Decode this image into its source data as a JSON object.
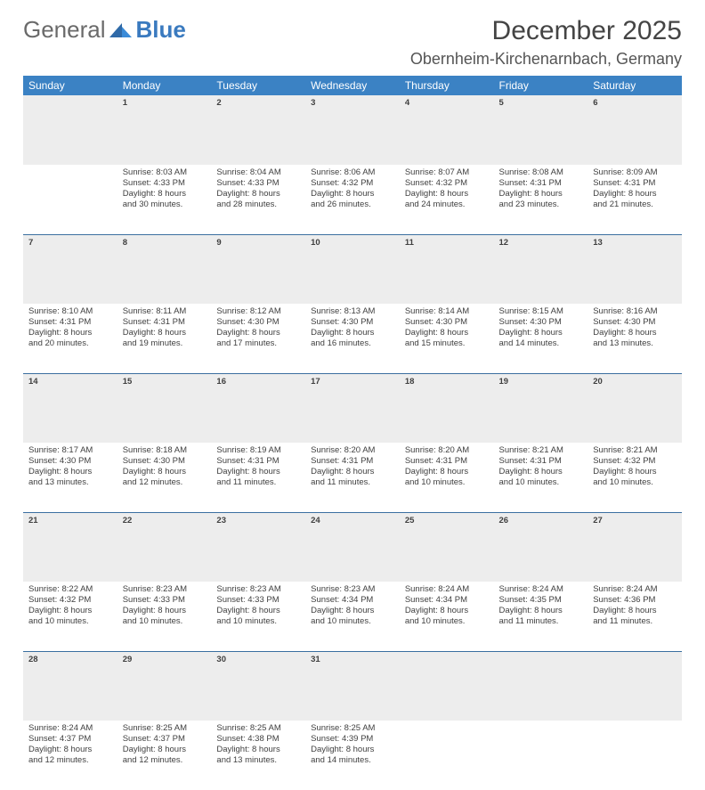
{
  "brand": {
    "word1": "General",
    "word2": "Blue"
  },
  "title": "December 2025",
  "location": "Obernheim-Kirchenarnbach, Germany",
  "colors": {
    "header_bg": "#3b82c4",
    "header_text": "#ffffff",
    "daynum_bg": "#ededed",
    "daynum_text": "#6b6b6b",
    "rule": "#3b6fa0",
    "body_text": "#3f3f3f",
    "brand_gray": "#6a6a6a",
    "brand_blue": "#3a7abf"
  },
  "weekdays": [
    "Sunday",
    "Monday",
    "Tuesday",
    "Wednesday",
    "Thursday",
    "Friday",
    "Saturday"
  ],
  "weeks": [
    [
      null,
      {
        "n": "1",
        "sr": "Sunrise: 8:03 AM",
        "ss": "Sunset: 4:33 PM",
        "d1": "Daylight: 8 hours",
        "d2": "and 30 minutes."
      },
      {
        "n": "2",
        "sr": "Sunrise: 8:04 AM",
        "ss": "Sunset: 4:33 PM",
        "d1": "Daylight: 8 hours",
        "d2": "and 28 minutes."
      },
      {
        "n": "3",
        "sr": "Sunrise: 8:06 AM",
        "ss": "Sunset: 4:32 PM",
        "d1": "Daylight: 8 hours",
        "d2": "and 26 minutes."
      },
      {
        "n": "4",
        "sr": "Sunrise: 8:07 AM",
        "ss": "Sunset: 4:32 PM",
        "d1": "Daylight: 8 hours",
        "d2": "and 24 minutes."
      },
      {
        "n": "5",
        "sr": "Sunrise: 8:08 AM",
        "ss": "Sunset: 4:31 PM",
        "d1": "Daylight: 8 hours",
        "d2": "and 23 minutes."
      },
      {
        "n": "6",
        "sr": "Sunrise: 8:09 AM",
        "ss": "Sunset: 4:31 PM",
        "d1": "Daylight: 8 hours",
        "d2": "and 21 minutes."
      }
    ],
    [
      {
        "n": "7",
        "sr": "Sunrise: 8:10 AM",
        "ss": "Sunset: 4:31 PM",
        "d1": "Daylight: 8 hours",
        "d2": "and 20 minutes."
      },
      {
        "n": "8",
        "sr": "Sunrise: 8:11 AM",
        "ss": "Sunset: 4:31 PM",
        "d1": "Daylight: 8 hours",
        "d2": "and 19 minutes."
      },
      {
        "n": "9",
        "sr": "Sunrise: 8:12 AM",
        "ss": "Sunset: 4:30 PM",
        "d1": "Daylight: 8 hours",
        "d2": "and 17 minutes."
      },
      {
        "n": "10",
        "sr": "Sunrise: 8:13 AM",
        "ss": "Sunset: 4:30 PM",
        "d1": "Daylight: 8 hours",
        "d2": "and 16 minutes."
      },
      {
        "n": "11",
        "sr": "Sunrise: 8:14 AM",
        "ss": "Sunset: 4:30 PM",
        "d1": "Daylight: 8 hours",
        "d2": "and 15 minutes."
      },
      {
        "n": "12",
        "sr": "Sunrise: 8:15 AM",
        "ss": "Sunset: 4:30 PM",
        "d1": "Daylight: 8 hours",
        "d2": "and 14 minutes."
      },
      {
        "n": "13",
        "sr": "Sunrise: 8:16 AM",
        "ss": "Sunset: 4:30 PM",
        "d1": "Daylight: 8 hours",
        "d2": "and 13 minutes."
      }
    ],
    [
      {
        "n": "14",
        "sr": "Sunrise: 8:17 AM",
        "ss": "Sunset: 4:30 PM",
        "d1": "Daylight: 8 hours",
        "d2": "and 13 minutes."
      },
      {
        "n": "15",
        "sr": "Sunrise: 8:18 AM",
        "ss": "Sunset: 4:30 PM",
        "d1": "Daylight: 8 hours",
        "d2": "and 12 minutes."
      },
      {
        "n": "16",
        "sr": "Sunrise: 8:19 AM",
        "ss": "Sunset: 4:31 PM",
        "d1": "Daylight: 8 hours",
        "d2": "and 11 minutes."
      },
      {
        "n": "17",
        "sr": "Sunrise: 8:20 AM",
        "ss": "Sunset: 4:31 PM",
        "d1": "Daylight: 8 hours",
        "d2": "and 11 minutes."
      },
      {
        "n": "18",
        "sr": "Sunrise: 8:20 AM",
        "ss": "Sunset: 4:31 PM",
        "d1": "Daylight: 8 hours",
        "d2": "and 10 minutes."
      },
      {
        "n": "19",
        "sr": "Sunrise: 8:21 AM",
        "ss": "Sunset: 4:31 PM",
        "d1": "Daylight: 8 hours",
        "d2": "and 10 minutes."
      },
      {
        "n": "20",
        "sr": "Sunrise: 8:21 AM",
        "ss": "Sunset: 4:32 PM",
        "d1": "Daylight: 8 hours",
        "d2": "and 10 minutes."
      }
    ],
    [
      {
        "n": "21",
        "sr": "Sunrise: 8:22 AM",
        "ss": "Sunset: 4:32 PM",
        "d1": "Daylight: 8 hours",
        "d2": "and 10 minutes."
      },
      {
        "n": "22",
        "sr": "Sunrise: 8:23 AM",
        "ss": "Sunset: 4:33 PM",
        "d1": "Daylight: 8 hours",
        "d2": "and 10 minutes."
      },
      {
        "n": "23",
        "sr": "Sunrise: 8:23 AM",
        "ss": "Sunset: 4:33 PM",
        "d1": "Daylight: 8 hours",
        "d2": "and 10 minutes."
      },
      {
        "n": "24",
        "sr": "Sunrise: 8:23 AM",
        "ss": "Sunset: 4:34 PM",
        "d1": "Daylight: 8 hours",
        "d2": "and 10 minutes."
      },
      {
        "n": "25",
        "sr": "Sunrise: 8:24 AM",
        "ss": "Sunset: 4:34 PM",
        "d1": "Daylight: 8 hours",
        "d2": "and 10 minutes."
      },
      {
        "n": "26",
        "sr": "Sunrise: 8:24 AM",
        "ss": "Sunset: 4:35 PM",
        "d1": "Daylight: 8 hours",
        "d2": "and 11 minutes."
      },
      {
        "n": "27",
        "sr": "Sunrise: 8:24 AM",
        "ss": "Sunset: 4:36 PM",
        "d1": "Daylight: 8 hours",
        "d2": "and 11 minutes."
      }
    ],
    [
      {
        "n": "28",
        "sr": "Sunrise: 8:24 AM",
        "ss": "Sunset: 4:37 PM",
        "d1": "Daylight: 8 hours",
        "d2": "and 12 minutes."
      },
      {
        "n": "29",
        "sr": "Sunrise: 8:25 AM",
        "ss": "Sunset: 4:37 PM",
        "d1": "Daylight: 8 hours",
        "d2": "and 12 minutes."
      },
      {
        "n": "30",
        "sr": "Sunrise: 8:25 AM",
        "ss": "Sunset: 4:38 PM",
        "d1": "Daylight: 8 hours",
        "d2": "and 13 minutes."
      },
      {
        "n": "31",
        "sr": "Sunrise: 8:25 AM",
        "ss": "Sunset: 4:39 PM",
        "d1": "Daylight: 8 hours",
        "d2": "and 14 minutes."
      },
      null,
      null,
      null
    ]
  ]
}
